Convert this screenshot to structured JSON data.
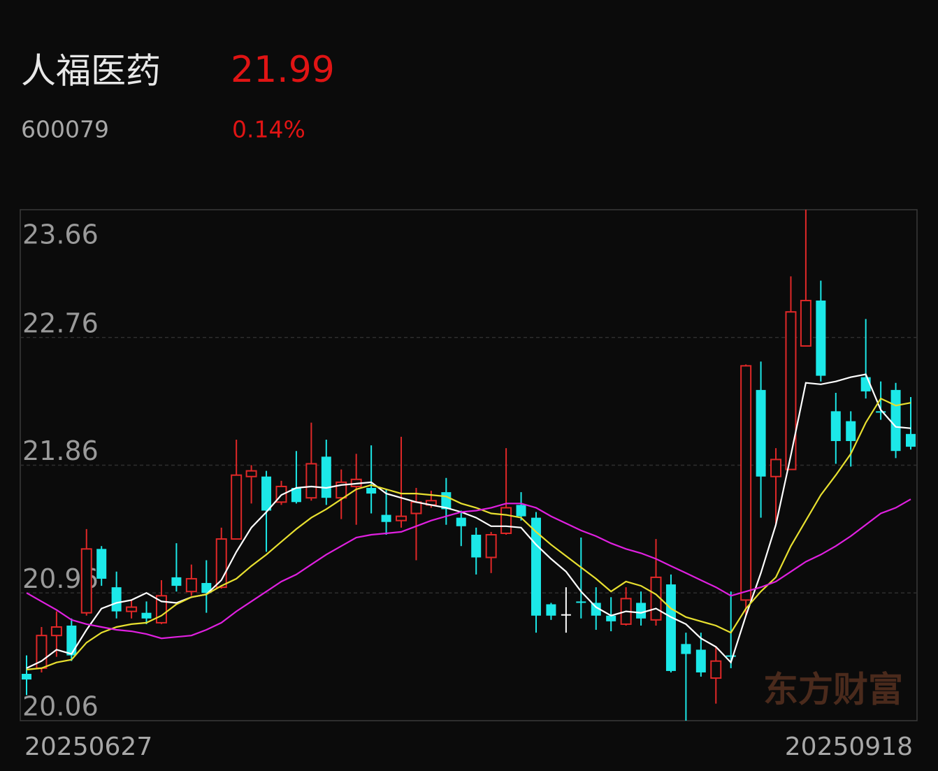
{
  "header": {
    "name": "人福医药",
    "price": "21.99",
    "code": "600079",
    "change": "0.14%"
  },
  "watermark": "东方财富",
  "chart_data": {
    "type": "candlestick",
    "categories": [
      "20250627",
      null,
      null,
      null,
      null,
      null,
      null,
      null,
      null,
      null,
      null,
      null,
      null,
      null,
      null,
      null,
      null,
      null,
      null,
      null,
      null,
      null,
      null,
      null,
      null,
      null,
      null,
      null,
      null,
      null,
      null,
      null,
      null,
      null,
      null,
      null,
      null,
      null,
      null,
      null,
      null,
      null,
      null,
      null,
      null,
      null,
      null,
      null,
      null,
      null,
      null,
      null,
      null,
      null,
      null,
      null,
      null,
      null,
      null,
      "20250918"
    ],
    "open": [
      20.39,
      20.43,
      20.66,
      20.73,
      20.82,
      21.27,
      21.0,
      20.83,
      20.82,
      20.75,
      21.07,
      20.97,
      21.03,
      21.0,
      21.34,
      21.78,
      21.78,
      21.6,
      21.7,
      21.63,
      21.92,
      21.63,
      21.71,
      21.7,
      21.51,
      21.47,
      21.52,
      21.58,
      21.67,
      21.49,
      21.37,
      21.21,
      21.38,
      21.58,
      21.49,
      20.88,
      20.81,
      20.9,
      20.89,
      20.8,
      20.74,
      20.89,
      20.77,
      21.02,
      20.6,
      20.56,
      20.36,
      20.52,
      20.91,
      22.39,
      21.78,
      21.83,
      22.7,
      23.02,
      22.24,
      22.17,
      22.48,
      22.24,
      22.39,
      22.08
    ],
    "high": [
      20.52,
      20.72,
      20.83,
      20.78,
      21.41,
      21.29,
      21.11,
      20.91,
      20.9,
      21.05,
      21.31,
      21.16,
      21.19,
      21.42,
      22.04,
      21.86,
      21.82,
      21.75,
      21.96,
      22.16,
      22.04,
      21.83,
      21.94,
      22.0,
      21.69,
      22.06,
      21.7,
      21.68,
      21.77,
      21.54,
      21.42,
      21.39,
      21.98,
      21.67,
      21.53,
      20.89,
      21.0,
      21.35,
      21.0,
      20.93,
      21.0,
      20.97,
      21.34,
      21.09,
      20.68,
      20.68,
      20.58,
      20.97,
      22.57,
      22.59,
      21.98,
      23.19,
      23.66,
      23.16,
      22.37,
      22.24,
      22.89,
      22.45,
      22.44,
      22.34
    ],
    "low": [
      20.24,
      20.4,
      20.51,
      20.48,
      20.8,
      21.01,
      20.78,
      20.78,
      20.74,
      20.74,
      20.97,
      20.94,
      20.82,
      20.99,
      21.34,
      21.59,
      21.25,
      21.58,
      21.59,
      21.61,
      21.58,
      21.48,
      21.44,
      21.52,
      21.37,
      21.42,
      21.19,
      21.56,
      21.44,
      21.29,
      21.09,
      21.1,
      21.37,
      21.47,
      20.68,
      20.77,
      20.68,
      20.78,
      20.7,
      20.69,
      20.73,
      20.73,
      20.73,
      20.4,
      20.06,
      20.37,
      20.18,
      20.43,
      20.8,
      21.49,
      21.44,
      21.83,
      22.7,
      22.45,
      21.87,
      21.85,
      22.33,
      22.18,
      21.91,
      21.97
    ],
    "close": [
      20.35,
      20.66,
      20.72,
      20.52,
      21.27,
      21.06,
      20.83,
      20.86,
      20.78,
      20.94,
      21.01,
      21.06,
      20.96,
      21.34,
      21.79,
      21.82,
      21.54,
      21.71,
      21.6,
      21.87,
      21.63,
      21.74,
      21.76,
      21.66,
      21.46,
      21.5,
      21.6,
      21.61,
      21.55,
      21.43,
      21.21,
      21.37,
      21.56,
      21.5,
      20.8,
      20.8,
      20.81,
      20.89,
      20.8,
      20.76,
      20.92,
      20.78,
      21.07,
      20.41,
      20.53,
      20.4,
      20.48,
      20.51,
      22.56,
      21.78,
      21.9,
      22.94,
      23.02,
      22.49,
      22.03,
      22.03,
      22.38,
      22.23,
      21.96,
      21.99
    ],
    "up_color": "#e02828",
    "down_color": "#1ce8e8",
    "flat_color": "#ffffff",
    "series": [
      {
        "color": "#ffffff",
        "values": [
          20.43,
          20.48,
          20.56,
          20.53,
          20.7,
          20.85,
          20.89,
          20.91,
          20.96,
          20.9,
          20.89,
          20.93,
          20.95,
          21.05,
          21.25,
          21.42,
          21.53,
          21.65,
          21.7,
          21.71,
          21.7,
          21.72,
          21.73,
          21.74,
          21.66,
          21.63,
          21.6,
          21.58,
          21.56,
          21.53,
          21.49,
          21.43,
          21.43,
          21.42,
          21.3,
          21.2,
          21.11,
          20.97,
          20.86,
          20.8,
          20.83,
          20.82,
          20.85,
          20.79,
          20.74,
          20.64,
          20.58,
          20.47,
          20.8,
          21.1,
          21.44,
          21.93,
          22.44,
          22.43,
          22.45,
          22.48,
          22.5,
          22.25,
          22.13,
          22.12
        ]
      },
      {
        "color": "#e8e030",
        "values": [
          20.42,
          20.43,
          20.47,
          20.49,
          20.61,
          20.68,
          20.72,
          20.74,
          20.75,
          20.8,
          20.88,
          20.93,
          20.95,
          21.01,
          21.06,
          21.15,
          21.23,
          21.32,
          21.41,
          21.49,
          21.55,
          21.62,
          21.69,
          21.72,
          21.69,
          21.66,
          21.66,
          21.65,
          21.64,
          21.59,
          21.56,
          21.52,
          21.51,
          21.49,
          21.39,
          21.3,
          21.22,
          21.14,
          21.06,
          20.97,
          21.04,
          21.01,
          20.95,
          20.85,
          20.79,
          20.76,
          20.73,
          20.68,
          20.85,
          20.97,
          21.07,
          21.29,
          21.47,
          21.65,
          21.79,
          21.94,
          22.16,
          22.33,
          22.28,
          22.3
        ]
      },
      {
        "color": "#e020e0",
        "values": [
          20.96,
          20.9,
          20.84,
          20.77,
          20.74,
          20.72,
          20.7,
          20.69,
          20.67,
          20.64,
          20.65,
          20.66,
          20.7,
          20.75,
          20.83,
          20.9,
          20.97,
          21.04,
          21.09,
          21.16,
          21.23,
          21.29,
          21.35,
          21.37,
          21.38,
          21.39,
          21.43,
          21.47,
          21.5,
          21.53,
          21.54,
          21.56,
          21.59,
          21.59,
          21.56,
          21.5,
          21.45,
          21.4,
          21.36,
          21.31,
          21.27,
          21.24,
          21.2,
          21.15,
          21.1,
          21.05,
          21.0,
          20.94,
          20.97,
          21.0,
          21.04,
          21.11,
          21.18,
          21.23,
          21.29,
          21.36,
          21.44,
          21.52,
          21.56,
          21.62
        ]
      }
    ],
    "ylim": [
      20.06,
      23.66
    ],
    "yticks": [
      20.06,
      20.96,
      21.86,
      22.76,
      23.66
    ],
    "grid": true
  }
}
